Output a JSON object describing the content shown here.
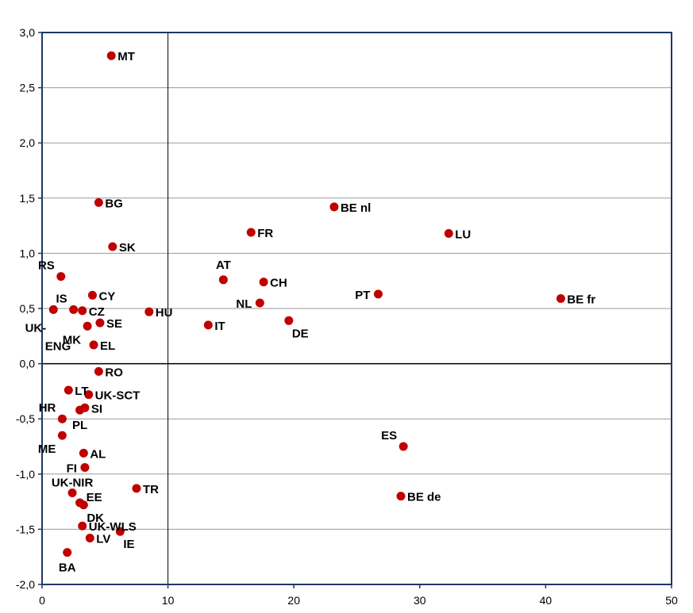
{
  "chart_data": {
    "type": "scatter",
    "title": "",
    "xlabel": "",
    "ylabel": "",
    "xlim": [
      0,
      50
    ],
    "ylim": [
      -2.0,
      3.0
    ],
    "x_ticks": [
      "0",
      "10",
      "20",
      "30",
      "40",
      "50"
    ],
    "y_ticks": [
      "-2,0",
      "-1,5",
      "-1,0",
      "-0,5",
      "0,0",
      "0,5",
      "1,0",
      "1,5",
      "2,0",
      "2,5",
      "3,0"
    ],
    "grid": "horizontal",
    "reference_lines": {
      "x": 10,
      "y": 0
    },
    "colors": {
      "point": "#c00000",
      "frame": "#1f3864",
      "grid": "#9a9a9a",
      "reference": "#000000"
    },
    "points": [
      {
        "label": "MT",
        "x": 5.5,
        "y": 2.79,
        "anchor": "right"
      },
      {
        "label": "BG",
        "x": 4.5,
        "y": 1.46,
        "anchor": "right"
      },
      {
        "label": "SK",
        "x": 5.6,
        "y": 1.06,
        "anchor": "right"
      },
      {
        "label": "RS",
        "x": 1.5,
        "y": 0.79,
        "anchor": "left-up"
      },
      {
        "label": "CY",
        "x": 4.0,
        "y": 0.62,
        "anchor": "right"
      },
      {
        "label": "IS",
        "x": 2.5,
        "y": 0.49,
        "anchor": "left-up"
      },
      {
        "label": "CZ",
        "x": 3.2,
        "y": 0.48,
        "anchor": "right"
      },
      {
        "label": "UK-ENG",
        "x": 0.9,
        "y": 0.49,
        "anchor": "below-left"
      },
      {
        "label": "MK",
        "x": 3.6,
        "y": 0.34,
        "anchor": "below-left"
      },
      {
        "label": "SE",
        "x": 4.6,
        "y": 0.37,
        "anchor": "right"
      },
      {
        "label": "EL",
        "x": 4.1,
        "y": 0.17,
        "anchor": "right"
      },
      {
        "label": "HU",
        "x": 8.5,
        "y": 0.47,
        "anchor": "right"
      },
      {
        "label": "AT",
        "x": 14.4,
        "y": 0.76,
        "anchor": "above"
      },
      {
        "label": "CH",
        "x": 17.6,
        "y": 0.74,
        "anchor": "right"
      },
      {
        "label": "NL",
        "x": 17.3,
        "y": 0.55,
        "anchor": "left"
      },
      {
        "label": "IT",
        "x": 13.2,
        "y": 0.35,
        "anchor": "right"
      },
      {
        "label": "DE",
        "x": 19.6,
        "y": 0.39,
        "anchor": "below-right"
      },
      {
        "label": "FR",
        "x": 16.6,
        "y": 1.19,
        "anchor": "right"
      },
      {
        "label": "BE nl",
        "x": 23.2,
        "y": 1.42,
        "anchor": "right"
      },
      {
        "label": "LU",
        "x": 32.3,
        "y": 1.18,
        "anchor": "right"
      },
      {
        "label": "PT",
        "x": 26.7,
        "y": 0.63,
        "anchor": "left"
      },
      {
        "label": "BE fr",
        "x": 41.2,
        "y": 0.59,
        "anchor": "right"
      },
      {
        "label": "RO",
        "x": 4.5,
        "y": -0.07,
        "anchor": "right"
      },
      {
        "label": "LT",
        "x": 2.1,
        "y": -0.24,
        "anchor": "right"
      },
      {
        "label": "UK-SCT",
        "x": 3.7,
        "y": -0.28,
        "anchor": "right"
      },
      {
        "label": "SI",
        "x": 3.4,
        "y": -0.4,
        "anchor": "right"
      },
      {
        "label": "HR",
        "x": 1.6,
        "y": -0.5,
        "anchor": "left-up"
      },
      {
        "label": "PL",
        "x": 3.0,
        "y": -0.42,
        "anchor": "below"
      },
      {
        "label": "ME",
        "x": 1.6,
        "y": -0.65,
        "anchor": "below-left"
      },
      {
        "label": "AL",
        "x": 3.3,
        "y": -0.81,
        "anchor": "right"
      },
      {
        "label": "FI",
        "x": 3.4,
        "y": -0.94,
        "anchor": "left"
      },
      {
        "label": "UK-NIR",
        "x": 2.4,
        "y": -1.17,
        "anchor": "above-left"
      },
      {
        "label": "EE",
        "x": 3.0,
        "y": -1.26,
        "anchor": "right-up"
      },
      {
        "label": "DK",
        "x": 3.3,
        "y": -1.28,
        "anchor": "below-right"
      },
      {
        "label": "TR",
        "x": 7.5,
        "y": -1.13,
        "anchor": "right"
      },
      {
        "label": "UK-WLS",
        "x": 3.2,
        "y": -1.47,
        "anchor": "right"
      },
      {
        "label": "LV",
        "x": 3.8,
        "y": -1.58,
        "anchor": "right"
      },
      {
        "label": "IE",
        "x": 6.2,
        "y": -1.52,
        "anchor": "below-right"
      },
      {
        "label": "BA",
        "x": 2.0,
        "y": -1.71,
        "anchor": "below"
      },
      {
        "label": "ES",
        "x": 28.7,
        "y": -0.75,
        "anchor": "left-up"
      },
      {
        "label": "BE de",
        "x": 28.5,
        "y": -1.2,
        "anchor": "right"
      }
    ]
  }
}
